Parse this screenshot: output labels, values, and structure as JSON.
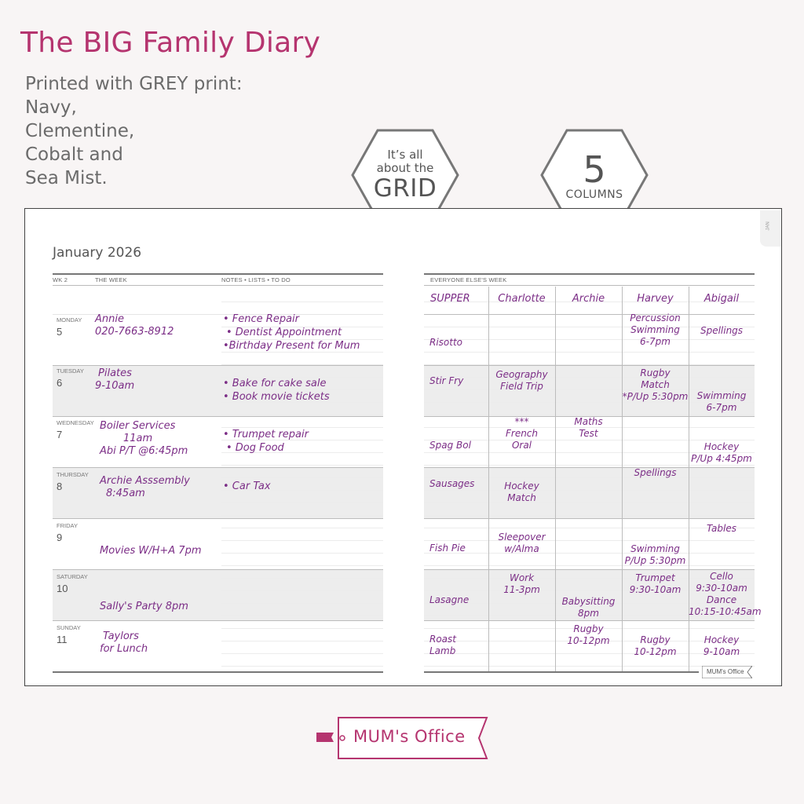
{
  "heading": "The BIG Family Diary",
  "subtitle_lines": [
    "Printed with GREY print:",
    "Navy,",
    "Clementine,",
    "Cobalt and",
    "Sea Mist."
  ],
  "badge_grid": {
    "line1": "It’s all",
    "line2": "about the",
    "line3": "GRID"
  },
  "badge_columns": {
    "number": "5",
    "label": "COLUMNS"
  },
  "colors": {
    "brand": "#b5346f",
    "handwriting": "#7b2d86",
    "grey_print": "#555555",
    "shade": "#ededed"
  },
  "diary": {
    "month": "January 2026",
    "week_label": "WK 2",
    "the_week_label": "THE WEEK",
    "notes_label": "NOTES • LISTS • TO DO",
    "everyone_label": "EVERYONE ELSE'S WEEK",
    "tab_label": "JAN",
    "brand_small": "MUM's Office",
    "days": [
      {
        "name": "MONDAY",
        "num": "5",
        "entry": [
          "Annie",
          "020-7663-8912"
        ],
        "notes": [
          "• Fence Repair",
          "• Dentist Appointment",
          "•Birthday Present for Mum"
        ]
      },
      {
        "name": "TUESDAY",
        "num": "6",
        "entry": [
          "Pilates",
          "9-10am"
        ],
        "notes": [
          "• Bake for cake sale",
          "• Book movie tickets"
        ]
      },
      {
        "name": "WEDNESDAY",
        "num": "7",
        "entry": [
          "Boiler Services",
          "11am",
          "Abi P/T @6:45pm"
        ],
        "notes": [
          "• Trumpet repair",
          "• Dog Food"
        ]
      },
      {
        "name": "THURSDAY",
        "num": "8",
        "entry": [
          "Archie Asssembly",
          "8:45am"
        ],
        "notes": [
          "• Car Tax"
        ]
      },
      {
        "name": "FRIDAY",
        "num": "9",
        "entry": [
          "Movies W/H+A 7pm"
        ],
        "notes": []
      },
      {
        "name": "SATURDAY",
        "num": "10",
        "entry": [
          "Sally's Party 8pm"
        ],
        "notes": []
      },
      {
        "name": "SUNDAY",
        "num": "11",
        "entry": [
          "Taylors",
          "for Lunch"
        ],
        "notes": []
      }
    ],
    "column_headers": [
      "SUPPER",
      "Charlotte",
      "Archie",
      "Harvey",
      "Abigail"
    ],
    "grid": [
      [
        "Risotto",
        "",
        "",
        "Percussion\nSwimming\n6-7pm",
        "Spellings"
      ],
      [
        "Stir Fry",
        "Geography\nField Trip",
        "",
        "Rugby\nMatch\n*P/Up 5:30pm",
        "Swimming\n6-7pm"
      ],
      [
        "Spag Bol",
        "***\nFrench\nOral",
        "Maths\nTest",
        "",
        "Hockey\nP/Up 4:45pm"
      ],
      [
        "Sausages",
        "Hockey\nMatch",
        "",
        "Spellings",
        ""
      ],
      [
        "Fish Pie",
        "Sleepover\nw/Alma",
        "",
        "Swimming\nP/Up 5:30pm",
        "Tables"
      ],
      [
        "Lasagne",
        "Work\n11-3pm",
        "Babysitting\n8pm",
        "Trumpet\n9:30-10am",
        "Cello\n9:30-10am\nDance\n10:15-10:45am"
      ],
      [
        "Roast\nLamb",
        "",
        "Rugby\n10-12pm",
        "Rugby\n10-12pm",
        "Hockey\n9-10am"
      ]
    ]
  },
  "logo_text": "MUM's Office"
}
